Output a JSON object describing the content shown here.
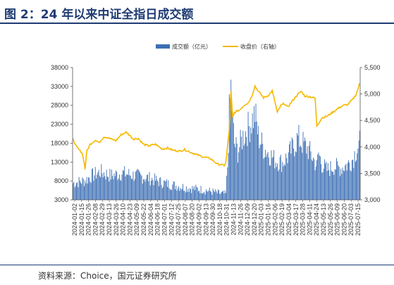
{
  "title": "图 2：24 年以来中证全指日成交额",
  "source": "资料来源：Choice，国元证券研究所",
  "chart_data": {
    "type": "bar",
    "title": "图 2：24 年以来中证全指日成交额",
    "legend": [
      "成交额（亿元）",
      "收盘价（右轴）"
    ],
    "legend_position": "top-center",
    "grid": false,
    "y_left": {
      "ticks": [
        3000,
        8000,
        13000,
        18000,
        23000,
        28000,
        33000,
        38000
      ],
      "lim": [
        3000,
        38000
      ]
    },
    "y_right": {
      "ticks": [
        "3,000",
        "3,500",
        "4,000",
        "4,500",
        "5,000",
        "5,500"
      ],
      "lim": [
        3000,
        5500
      ]
    },
    "x_ticks": [
      "2024-01-02",
      "2024-01-15",
      "2024-01-26",
      "2024-02-08",
      "2024-02-29",
      "2024-03-13",
      "2024-03-26",
      "2024-04-10",
      "2024-04-23",
      "2024-05-09",
      "2024-05-22",
      "2024-06-04",
      "2024-06-18",
      "2024-07-01",
      "2024-07-12",
      "2024-07-25",
      "2024-08-07",
      "2024-08-20",
      "2024-09-02",
      "2024-09-13",
      "2024-09-30",
      "2024-10-18",
      "2024-10-31",
      "2024-11-13",
      "2024-11-26",
      "2024-12-09",
      "2024-12-20",
      "2025-01-03",
      "2025-01-16",
      "2025-02-06",
      "2025-02-19",
      "2025-03-04",
      "2025-03-17",
      "2025-03-28",
      "2025-04-11",
      "2025-04-24",
      "2025-05-13",
      "2025-05-26",
      "2025-06-09",
      "2025-06-20",
      "2025-07-03",
      "2025-07-15"
    ],
    "series": [
      {
        "name": "成交额（亿元）",
        "type": "bar",
        "axis": "left",
        "color": "#3d6fb4",
        "keypoints": [
          [
            0,
            7500
          ],
          [
            14,
            8200
          ],
          [
            22,
            9500
          ],
          [
            32,
            10500
          ],
          [
            44,
            9500
          ],
          [
            58,
            10200
          ],
          [
            70,
            9600
          ],
          [
            82,
            9200
          ],
          [
            92,
            8600
          ],
          [
            102,
            7800
          ],
          [
            112,
            7200
          ],
          [
            125,
            6600
          ],
          [
            135,
            6200
          ],
          [
            150,
            5800
          ],
          [
            163,
            5200
          ],
          [
            170,
            4800
          ],
          [
            178,
            4600
          ],
          [
            180,
            12000
          ],
          [
            182,
            26000
          ],
          [
            184,
            33000
          ],
          [
            186,
            24000
          ],
          [
            188,
            18000
          ],
          [
            192,
            16000
          ],
          [
            198,
            20000
          ],
          [
            206,
            23000
          ],
          [
            212,
            26000
          ],
          [
            216,
            20000
          ],
          [
            222,
            17000
          ],
          [
            230,
            15000
          ],
          [
            236,
            13500
          ],
          [
            244,
            13000
          ],
          [
            250,
            14500
          ],
          [
            256,
            17000
          ],
          [
            262,
            19500
          ],
          [
            268,
            18000
          ],
          [
            274,
            16500
          ],
          [
            280,
            14000
          ],
          [
            284,
            12000
          ],
          [
            286,
            15500
          ],
          [
            290,
            12500
          ],
          [
            296,
            11000
          ],
          [
            304,
            12000
          ],
          [
            312,
            11500
          ],
          [
            320,
            12500
          ],
          [
            326,
            14000
          ],
          [
            330,
            16500
          ],
          [
            334,
            18000
          ]
        ]
      },
      {
        "name": "收盘价（右轴）",
        "type": "line",
        "axis": "right",
        "color": "#f5b800",
        "keypoints": [
          [
            0,
            4150
          ],
          [
            4,
            4000
          ],
          [
            8,
            3930
          ],
          [
            10,
            3900
          ],
          [
            12,
            3800
          ],
          [
            14,
            3580
          ],
          [
            16,
            3920
          ],
          [
            20,
            4050
          ],
          [
            26,
            4130
          ],
          [
            30,
            4080
          ],
          [
            36,
            4190
          ],
          [
            40,
            4180
          ],
          [
            44,
            4150
          ],
          [
            50,
            4120
          ],
          [
            56,
            4230
          ],
          [
            62,
            4280
          ],
          [
            66,
            4220
          ],
          [
            70,
            4150
          ],
          [
            76,
            4160
          ],
          [
            82,
            4050
          ],
          [
            88,
            4020
          ],
          [
            96,
            4050
          ],
          [
            104,
            3960
          ],
          [
            110,
            3980
          ],
          [
            116,
            3940
          ],
          [
            124,
            3920
          ],
          [
            130,
            3950
          ],
          [
            140,
            3880
          ],
          [
            150,
            3820
          ],
          [
            160,
            3780
          ],
          [
            168,
            3680
          ],
          [
            176,
            3650
          ],
          [
            178,
            3700
          ],
          [
            182,
            4320
          ],
          [
            184,
            5050
          ],
          [
            186,
            4550
          ],
          [
            188,
            4650
          ],
          [
            194,
            4700
          ],
          [
            200,
            4800
          ],
          [
            204,
            4830
          ],
          [
            208,
            4950
          ],
          [
            212,
            5150
          ],
          [
            216,
            5050
          ],
          [
            222,
            4930
          ],
          [
            228,
            4980
          ],
          [
            232,
            5060
          ],
          [
            236,
            4800
          ],
          [
            238,
            4650
          ],
          [
            242,
            4780
          ],
          [
            246,
            4820
          ],
          [
            250,
            4750
          ],
          [
            256,
            4880
          ],
          [
            262,
            5000
          ],
          [
            266,
            5050
          ],
          [
            270,
            4960
          ],
          [
            276,
            4950
          ],
          [
            280,
            4930
          ],
          [
            282,
            4920
          ],
          [
            284,
            4400
          ],
          [
            286,
            4450
          ],
          [
            290,
            4550
          ],
          [
            296,
            4580
          ],
          [
            302,
            4650
          ],
          [
            308,
            4720
          ],
          [
            314,
            4780
          ],
          [
            320,
            4800
          ],
          [
            326,
            4900
          ],
          [
            330,
            5000
          ],
          [
            334,
            5200
          ]
        ]
      }
    ]
  }
}
